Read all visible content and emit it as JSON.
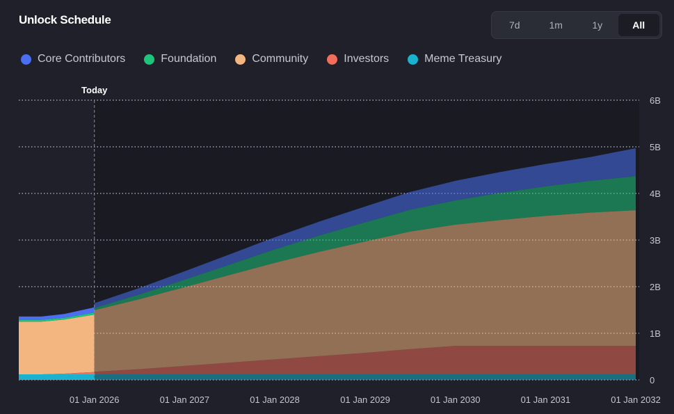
{
  "header": {
    "title": "Unlock Schedule"
  },
  "range_buttons": [
    {
      "label": "7d",
      "active": false
    },
    {
      "label": "1m",
      "active": false
    },
    {
      "label": "1y",
      "active": false
    },
    {
      "label": "All",
      "active": true
    }
  ],
  "chart_data": {
    "type": "area",
    "stacked": true,
    "title": "Unlock Schedule",
    "today_label": "Today",
    "today": "2026-01-01",
    "x_tick_labels": [
      "01 Jan 2026",
      "01 Jan 2027",
      "01 Jan 2028",
      "01 Jan 2029",
      "01 Jan 2030",
      "01 Jan 2031",
      "01 Jan 2032"
    ],
    "x_ticks": [
      "2026-01-01",
      "2027-01-01",
      "2028-01-01",
      "2029-01-01",
      "2030-01-01",
      "2031-01-01",
      "2032-01-01"
    ],
    "xlim": [
      "2025-03-01",
      "2032-01-15"
    ],
    "y_tick_labels": [
      "0",
      "1B",
      "2B",
      "3B",
      "4B",
      "5B",
      "6B"
    ],
    "y_ticks": [
      0,
      1000000000,
      2000000000,
      3000000000,
      4000000000,
      5000000000,
      6000000000
    ],
    "ylim": [
      0,
      6000000000
    ],
    "grid": "horizontal-dotted",
    "legend_position": "top-left",
    "x": [
      "2025-03-01",
      "2025-06-01",
      "2025-09-01",
      "2025-12-31",
      "2026-01-01",
      "2026-07-01",
      "2027-01-01",
      "2027-07-01",
      "2028-01-01",
      "2028-07-01",
      "2029-01-01",
      "2029-07-01",
      "2030-01-01",
      "2030-07-01",
      "2031-01-01",
      "2031-07-01",
      "2032-01-01"
    ],
    "series": [
      {
        "name": "Meme Treasury",
        "color": "#1ab2cf",
        "values": [
          120000000,
          120000000,
          120000000,
          120000000,
          120000000,
          120000000,
          120000000,
          120000000,
          120000000,
          120000000,
          120000000,
          120000000,
          120000000,
          120000000,
          120000000,
          120000000,
          120000000
        ]
      },
      {
        "name": "Investors",
        "color": "#f16d5c",
        "values": [
          0,
          0,
          15000000,
          50000000,
          55000000,
          110000000,
          180000000,
          250000000,
          320000000,
          390000000,
          460000000,
          540000000,
          610000000,
          610000000,
          610000000,
          610000000,
          610000000
        ]
      },
      {
        "name": "Community",
        "color": "#f4b680",
        "values": [
          1130000000,
          1130000000,
          1160000000,
          1230000000,
          1320000000,
          1500000000,
          1690000000,
          1880000000,
          2070000000,
          2240000000,
          2390000000,
          2520000000,
          2600000000,
          2700000000,
          2790000000,
          2860000000,
          2910000000
        ]
      },
      {
        "name": "Foundation",
        "color": "#1ec47a",
        "values": [
          40000000,
          40000000,
          40000000,
          45000000,
          50000000,
          100000000,
          160000000,
          220000000,
          290000000,
          350000000,
          410000000,
          470000000,
          520000000,
          580000000,
          630000000,
          680000000,
          730000000
        ]
      },
      {
        "name": "Core Contributors",
        "color": "#4b6ff0",
        "values": [
          70000000,
          70000000,
          80000000,
          110000000,
          100000000,
          140000000,
          180000000,
          220000000,
          260000000,
          300000000,
          340000000,
          380000000,
          420000000,
          450000000,
          480000000,
          510000000,
          600000000
        ]
      }
    ]
  },
  "legend": [
    {
      "label": "Core Contributors",
      "color": "#4b6ff0"
    },
    {
      "label": "Foundation",
      "color": "#1ec47a"
    },
    {
      "label": "Community",
      "color": "#f4b680"
    },
    {
      "label": "Investors",
      "color": "#f16d5c"
    },
    {
      "label": "Meme Treasury",
      "color": "#1ab2cf"
    }
  ]
}
